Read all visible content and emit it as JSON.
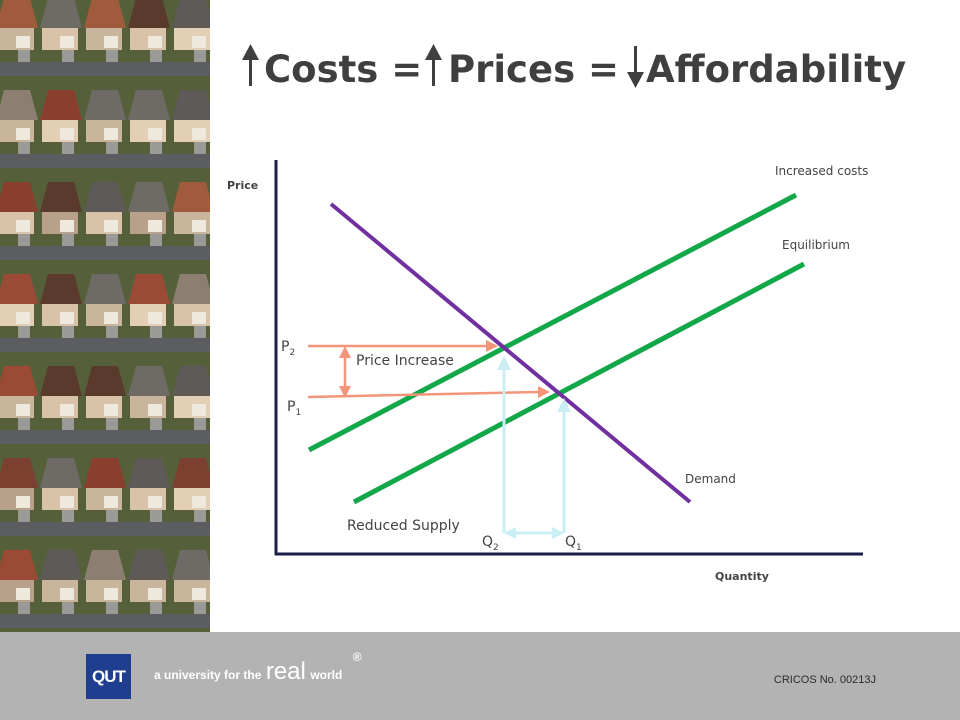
{
  "title": {
    "word1": "Costs =",
    "word2": "Prices =",
    "word3": "Affordability",
    "arrow1_icon": "arrow-up-icon",
    "arrow2_icon": "arrow-up-icon",
    "arrow3_icon": "arrow-down-icon",
    "color_text": "#3f3f3f"
  },
  "diagram": {
    "y_axis_label": "Price",
    "x_axis_label": "Quantity",
    "supply_increased_label": "Increased costs",
    "supply_equilibrium_label": "Equilibrium",
    "demand_label": "Demand",
    "reduced_supply_label": "Reduced Supply",
    "price_increase_label": "Price Increase",
    "p2_main": "P",
    "p2_sub": "2",
    "p1_main": "P",
    "p1_sub": "1",
    "q2_main": "Q",
    "q2_sub": "2",
    "q1_main": "Q",
    "q1_sub": "1",
    "colors": {
      "supply": "#12a84a",
      "demand": "#7030a0",
      "price_arrows": "#f4957a",
      "quantity_arrows": "#c9eef4",
      "axis": "#1a1f4a"
    }
  },
  "footer": {
    "tagline_prefix": "a university for the",
    "tagline_real": "real",
    "tagline_suffix": "world",
    "registered_mark": "®",
    "logo_text": "QUT",
    "cricos": "CRICOS No. 00213J"
  },
  "photo": {
    "description_icon": "suburban-houses-aerial-photo"
  }
}
